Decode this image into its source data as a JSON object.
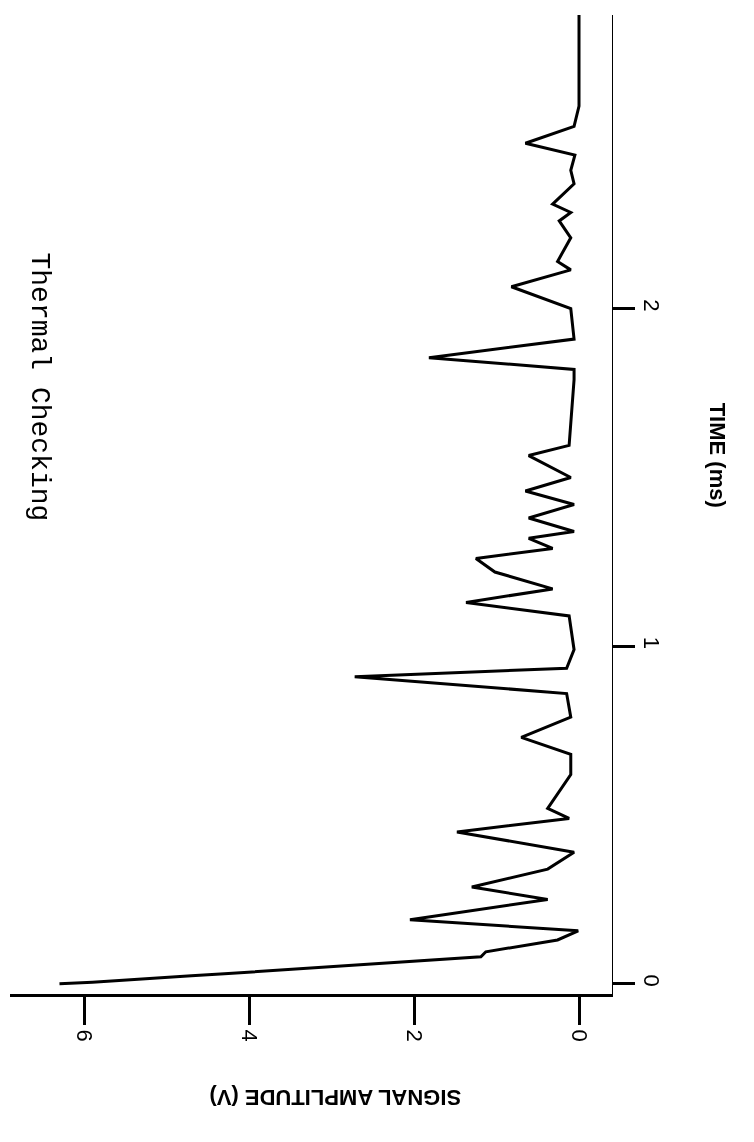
{
  "chart_data": {
    "type": "line",
    "title": "Thermal Checking",
    "xlabel": "SIGNAL AMPLITUDE (V)",
    "ylabel": "TIME (ms)",
    "x": [
      6.3,
      5.9,
      4.7,
      4.3,
      1.19,
      1.13,
      0.26,
      0.01,
      2.05,
      0.38,
      1.3,
      0.38,
      0.06,
      1.48,
      0.12,
      0.38,
      0.1,
      0.1,
      0.7,
      0.1,
      0.15,
      2.72,
      0.15,
      0.06,
      0.12,
      1.37,
      0.32,
      1.02,
      1.25,
      0.32,
      0.61,
      0.06,
      0.61,
      0.06,
      0.65,
      0.1,
      0.61,
      0.12,
      0.06,
      0.06,
      1.82,
      0.06,
      0.1,
      0.82,
      0.1,
      0.26,
      0.1,
      0.24,
      0.1,
      0.32,
      0.06,
      0.1,
      0.05,
      0.65,
      0.06,
      0,
      0
    ],
    "values": [
      0,
      0.005,
      0.024,
      0.03,
      0.08,
      0.095,
      0.13,
      0.157,
      0.19,
      0.25,
      0.287,
      0.34,
      0.39,
      0.45,
      0.49,
      0.52,
      0.62,
      0.68,
      0.73,
      0.79,
      0.86,
      0.91,
      0.935,
      0.99,
      1.09,
      1.13,
      1.17,
      1.22,
      1.26,
      1.29,
      1.32,
      1.34,
      1.38,
      1.42,
      1.46,
      1.5,
      1.565,
      1.595,
      1.79,
      1.82,
      1.855,
      1.91,
      2.0,
      2.065,
      2.115,
      2.14,
      2.21,
      2.26,
      2.285,
      2.31,
      2.37,
      2.41,
      2.455,
      2.49,
      2.54,
      2.6,
      2.87
    ],
    "color": "#000000",
    "xlim": [
      6.9,
      -0.4
    ],
    "xticks": [
      6,
      4,
      2,
      0
    ],
    "ylim": [
      -0.03,
      2.87
    ],
    "yticks": [
      0,
      1,
      2
    ]
  }
}
